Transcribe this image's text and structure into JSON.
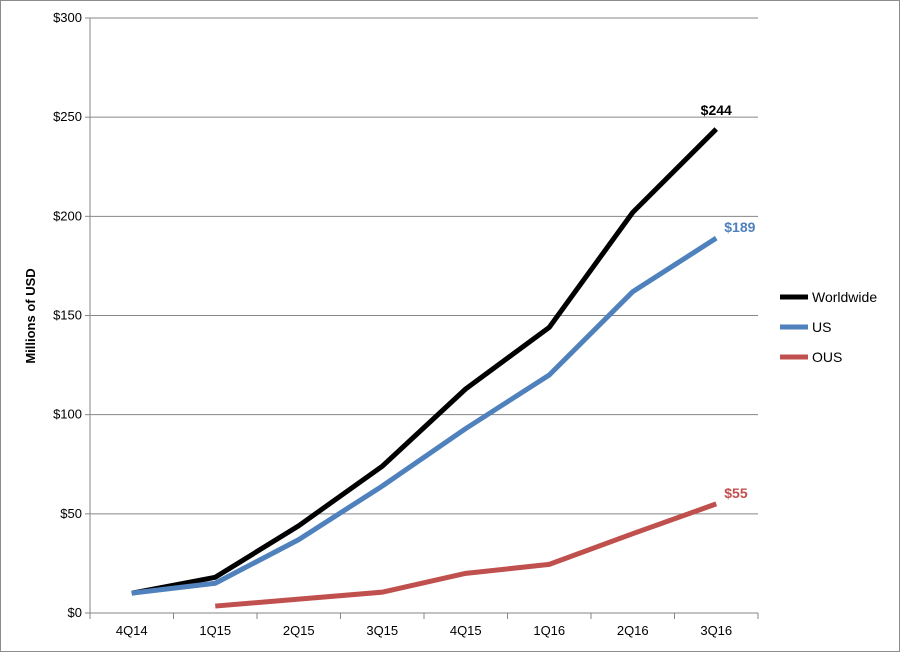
{
  "chart_data": {
    "type": "line",
    "categories": [
      "4Q14",
      "1Q15",
      "2Q15",
      "3Q15",
      "4Q15",
      "1Q16",
      "2Q16",
      "3Q16"
    ],
    "ylabel": "Millions of USD",
    "xlabel": "",
    "title": "",
    "ylim": [
      0,
      300
    ],
    "yticks": [
      0,
      50,
      100,
      150,
      200,
      250,
      300
    ],
    "ytick_labels": [
      "$0",
      "$50",
      "$100",
      "$150",
      "$200",
      "$250",
      "$300"
    ],
    "grid": "horizontal",
    "legend_position": "right",
    "series": [
      {
        "name": "Worldwide",
        "color": "#000000",
        "values": [
          10,
          18,
          44,
          74,
          113,
          144,
          202,
          244
        ],
        "end_label": "$244"
      },
      {
        "name": "US",
        "color": "#4f81bd",
        "values": [
          10,
          15,
          37,
          64,
          93,
          120,
          162,
          189
        ],
        "end_label": "$189"
      },
      {
        "name": "OUS",
        "color": "#c0504d",
        "values": [
          null,
          3.5,
          7,
          10.5,
          20,
          24.5,
          40,
          55
        ],
        "end_label": "$55"
      }
    ]
  }
}
